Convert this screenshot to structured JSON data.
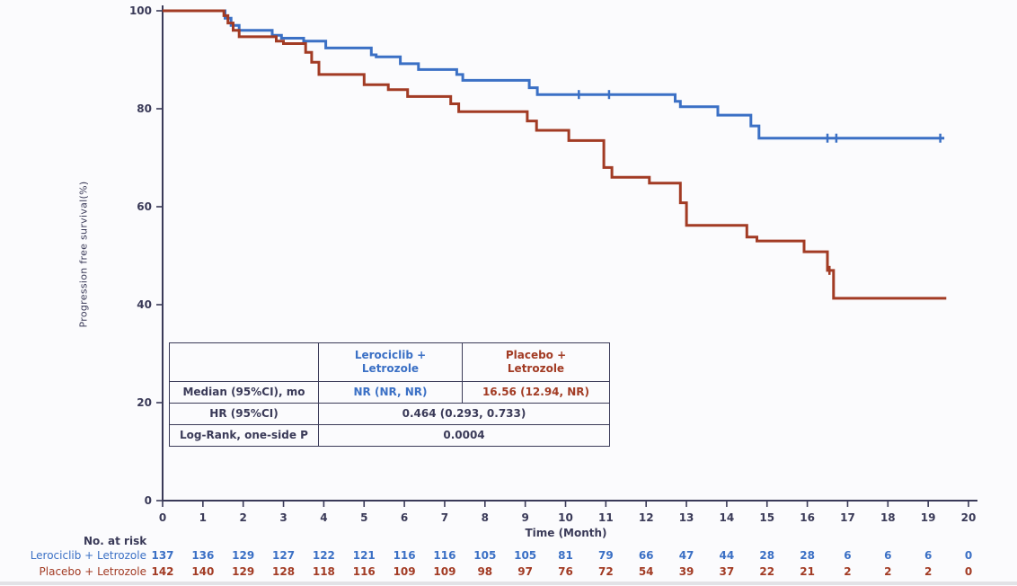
{
  "colors": {
    "lerociclib_blue": "#3b70c5",
    "placebo_red": "#a23b24",
    "ink": "#3a3a58",
    "background": "#fbfbfd"
  },
  "chart_data": {
    "type": "line",
    "subtype": "kaplan_meier_step",
    "title": "",
    "xlabel": "Time (Month)",
    "ylabel": "Progression free survival(%)",
    "xlim": [
      0,
      20
    ],
    "ylim": [
      0,
      100
    ],
    "xticks": [
      0,
      1,
      2,
      3,
      4,
      5,
      6,
      7,
      8,
      9,
      10,
      11,
      12,
      13,
      14,
      15,
      16,
      17,
      18,
      19,
      20
    ],
    "yticks": [
      0,
      20,
      40,
      60,
      80,
      100
    ],
    "grid": false,
    "legend_position": "none",
    "series": [
      {
        "name": "Lerociclib + Letrozole",
        "color": "#3b70c5",
        "points": [
          [
            0,
            100
          ],
          [
            1.43,
            100
          ],
          [
            1.55,
            98.5
          ],
          [
            1.7,
            97
          ],
          [
            1.9,
            96
          ],
          [
            2.72,
            95
          ],
          [
            2.95,
            94.4
          ],
          [
            3.5,
            93.8
          ],
          [
            4.05,
            92.4
          ],
          [
            5.18,
            91
          ],
          [
            5.3,
            90.6
          ],
          [
            5.9,
            89.2
          ],
          [
            6.35,
            88
          ],
          [
            7.3,
            87
          ],
          [
            7.45,
            85.8
          ],
          [
            9.1,
            84.3
          ],
          [
            9.3,
            82.9
          ],
          [
            12.72,
            81.5
          ],
          [
            12.85,
            80.4
          ],
          [
            13.78,
            78.7
          ],
          [
            14.6,
            76.5
          ],
          [
            14.8,
            74
          ],
          [
            19.4,
            74
          ]
        ],
        "censors": [
          [
            10.33,
            82.9
          ],
          [
            11.08,
            82.9
          ],
          [
            16.5,
            74
          ],
          [
            16.72,
            74
          ],
          [
            19.3,
            74
          ]
        ]
      },
      {
        "name": "Placebo + Letrozole",
        "color": "#a23b24",
        "points": [
          [
            0,
            100
          ],
          [
            1.43,
            100
          ],
          [
            1.52,
            99
          ],
          [
            1.62,
            97.5
          ],
          [
            1.75,
            96
          ],
          [
            1.9,
            94.7
          ],
          [
            2.82,
            93.8
          ],
          [
            3.0,
            93.3
          ],
          [
            3.55,
            91.5
          ],
          [
            3.7,
            89.5
          ],
          [
            3.88,
            87
          ],
          [
            5.0,
            84.9
          ],
          [
            5.6,
            83.9
          ],
          [
            6.08,
            82.5
          ],
          [
            7.15,
            81
          ],
          [
            7.35,
            79.4
          ],
          [
            9.05,
            77.5
          ],
          [
            9.28,
            75.6
          ],
          [
            10.08,
            73.5
          ],
          [
            10.95,
            68
          ],
          [
            11.15,
            66
          ],
          [
            12.08,
            64.8
          ],
          [
            12.85,
            60.8
          ],
          [
            13.0,
            56.2
          ],
          [
            14.5,
            53.8
          ],
          [
            14.75,
            53
          ],
          [
            15.92,
            50.8
          ],
          [
            16.5,
            47
          ],
          [
            16.65,
            41.3
          ],
          [
            19.45,
            41.3
          ]
        ],
        "censors": [
          [
            16.55,
            47
          ]
        ]
      }
    ]
  },
  "stats_table": {
    "columns": [
      "Lerociclib +\nLetrozole",
      "Placebo +\nLetrozole"
    ],
    "median": {
      "label": "Median (95%CI), mo",
      "lerociclib": "NR (NR, NR)",
      "placebo": "16.56 (12.94, NR)"
    },
    "hr": {
      "label": "HR (95%CI)",
      "value": "0.464 (0.293,  0.733)"
    },
    "logrank": {
      "label": "Log-Rank, one-side P",
      "value": "0.0004"
    }
  },
  "risk_table": {
    "title": "No. at risk",
    "months": [
      0,
      1,
      2,
      3,
      4,
      5,
      6,
      7,
      8,
      9,
      10,
      11,
      12,
      13,
      14,
      15,
      16,
      17,
      18,
      19,
      20
    ],
    "rows": [
      {
        "label": "Lerociclib + Letrozole",
        "color": "#3b70c5",
        "counts": [
          137,
          136,
          129,
          127,
          122,
          121,
          116,
          116,
          105,
          105,
          81,
          79,
          66,
          47,
          44,
          28,
          28,
          6,
          6,
          6,
          0
        ]
      },
      {
        "label": "Placebo + Letrozole",
        "color": "#a23b24",
        "counts": [
          142,
          140,
          129,
          128,
          118,
          116,
          109,
          109,
          98,
          97,
          76,
          72,
          54,
          39,
          37,
          22,
          21,
          2,
          2,
          2,
          0
        ]
      }
    ]
  }
}
